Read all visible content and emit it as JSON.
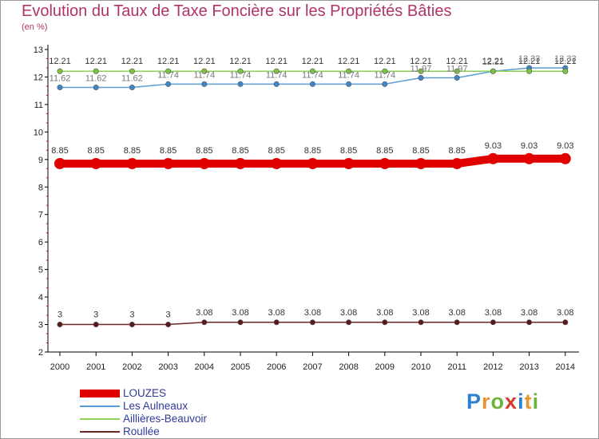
{
  "title": "Evolution du Taux de Taxe Foncière sur les Propriétés Bâties",
  "subtitle": "(en %)",
  "brand": {
    "letters": [
      {
        "ch": "P",
        "color": "#2e7fd0"
      },
      {
        "ch": "r",
        "color": "#e9952f"
      },
      {
        "ch": "o",
        "color": "#6bb33a"
      },
      {
        "ch": "x",
        "color": "#d93a2c"
      },
      {
        "ch": "i",
        "color": "#2e7fd0"
      },
      {
        "ch": "t",
        "color": "#e9952f"
      },
      {
        "ch": "i",
        "color": "#6bb33a"
      }
    ]
  },
  "chart_data": {
    "type": "line",
    "title": "Evolution du Taux de Taxe Foncière sur les Propriétés Bâties",
    "ylabel": "(en %)",
    "xlabel": "",
    "ylim": [
      2,
      13
    ],
    "yticks": [
      "2",
      "3",
      "4",
      "5",
      "6",
      "7",
      "8",
      "9",
      "10",
      "11",
      "12",
      "13"
    ],
    "x": [
      "2000",
      "2001",
      "2002",
      "2003",
      "2004",
      "2005",
      "2006",
      "2007",
      "2008",
      "2009",
      "2010",
      "2011",
      "2012",
      "2013",
      "2014"
    ],
    "grid": false,
    "legend_position": "bottom-left",
    "series": [
      {
        "name": "LOUZES",
        "color": "#e00000",
        "values": [
          8.85,
          8.85,
          8.85,
          8.85,
          8.85,
          8.85,
          8.85,
          8.85,
          8.85,
          8.85,
          8.85,
          8.85,
          9.03,
          9.03,
          9.03
        ],
        "labels": [
          "8.85",
          "8.85",
          "8.85",
          "8.85",
          "8.85",
          "8.85",
          "8.85",
          "8.85",
          "8.85",
          "8.85",
          "8.85",
          "8.85",
          "9.03",
          "9.03",
          "9.03"
        ]
      },
      {
        "name": "Les Aulneaux",
        "color": "#5b9ed6",
        "values": [
          11.62,
          11.62,
          11.62,
          11.74,
          11.74,
          11.74,
          11.74,
          11.74,
          11.74,
          11.74,
          11.97,
          11.97,
          12.21,
          12.33,
          12.33
        ],
        "labels": [
          "11.62",
          "11.62",
          "11.62",
          "11.74",
          "11.74",
          "11.74",
          "11.74",
          "11.74",
          "11.74",
          "11.74",
          "11.97",
          "11.97",
          "12.21",
          "12.33",
          "12.33"
        ]
      },
      {
        "name": "Aillières-Beauvoir",
        "color": "#8fd158",
        "values": [
          12.21,
          12.21,
          12.21,
          12.21,
          12.21,
          12.21,
          12.21,
          12.21,
          12.21,
          12.21,
          12.21,
          12.21,
          12.21,
          12.21,
          12.21
        ],
        "labels": [
          "12.21",
          "12.21",
          "12.21",
          "12.21",
          "12.21",
          "12.21",
          "12.21",
          "12.21",
          "12.21",
          "12.21",
          "12.21",
          "12.21",
          "12.21",
          "12.21",
          "12.21"
        ]
      },
      {
        "name": "Roullée",
        "color": "#6b2424",
        "values": [
          3,
          3,
          3,
          3,
          3.08,
          3.08,
          3.08,
          3.08,
          3.08,
          3.08,
          3.08,
          3.08,
          3.08,
          3.08,
          3.08
        ],
        "labels": [
          "3",
          "3",
          "3",
          "3",
          "3.08",
          "3.08",
          "3.08",
          "3.08",
          "3.08",
          "3.08",
          "3.08",
          "3.08",
          "3.08",
          "3.08",
          "3.08"
        ]
      }
    ]
  }
}
